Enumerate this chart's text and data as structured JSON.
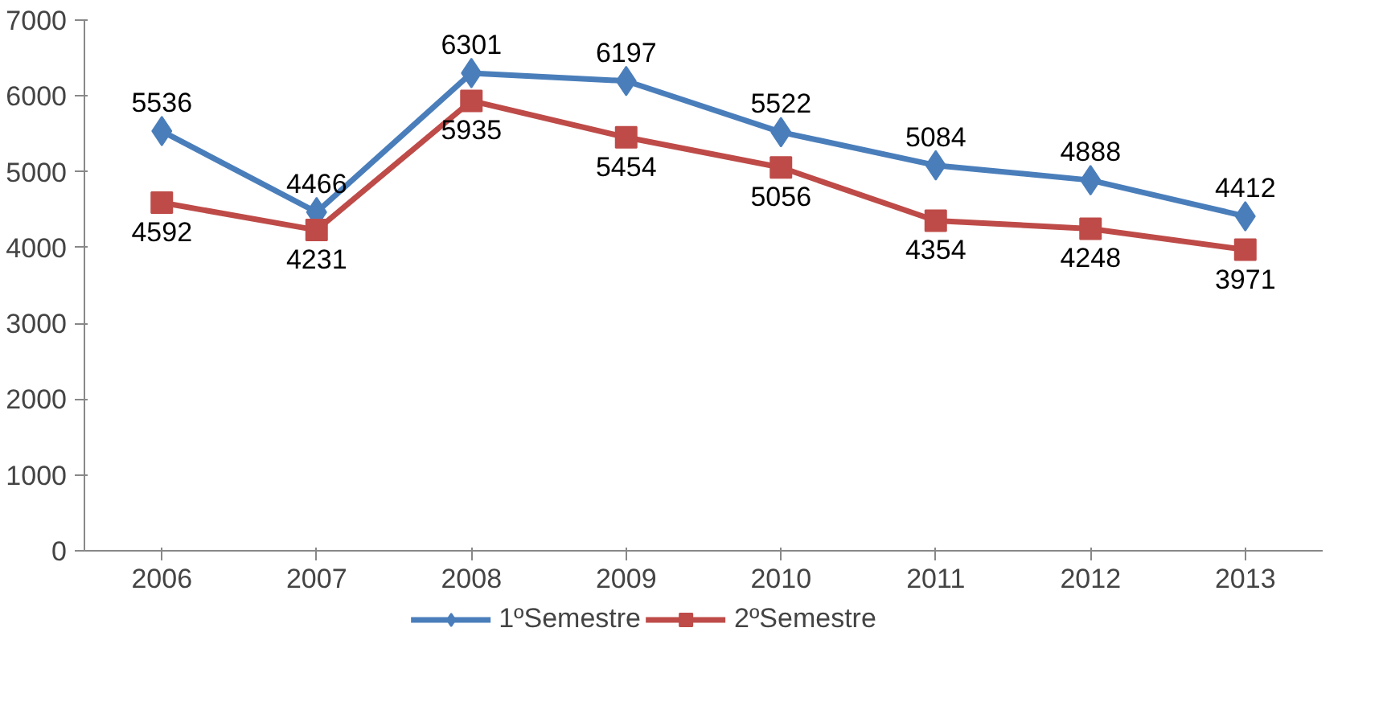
{
  "chart_data": {
    "type": "line",
    "categories": [
      "2006",
      "2007",
      "2008",
      "2009",
      "2010",
      "2011",
      "2012",
      "2013"
    ],
    "series": [
      {
        "name": "1ºSemestre",
        "color": "#4a7ebb",
        "marker": "diamond",
        "values": [
          5536,
          4466,
          6301,
          6197,
          5522,
          5084,
          4888,
          4412
        ]
      },
      {
        "name": "2ºSemestre",
        "color": "#be4b48",
        "marker": "square",
        "values": [
          4592,
          4231,
          5935,
          5454,
          5056,
          4354,
          4248,
          3971
        ]
      }
    ],
    "ylim": [
      0,
      7000
    ],
    "yticks": [
      0,
      1000,
      2000,
      3000,
      4000,
      5000,
      6000,
      7000
    ],
    "grid": false,
    "legend": "bottom",
    "data_labels": true,
    "line_style": "solid"
  }
}
